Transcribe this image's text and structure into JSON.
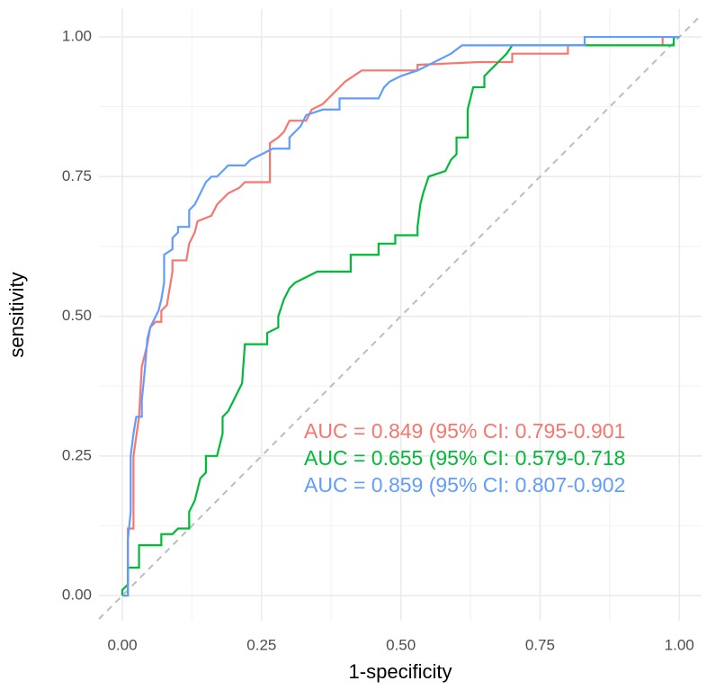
{
  "chart_data": {
    "type": "line",
    "x_label": "1-specificity",
    "y_label": "sensitivity",
    "xlim": [
      -0.042,
      1.04
    ],
    "ylim": [
      -0.045,
      1.05
    ],
    "xticks": [
      {
        "value": 0,
        "label": "0.00"
      },
      {
        "value": 0.25,
        "label": "0.25"
      },
      {
        "value": 0.5,
        "label": "0.50"
      },
      {
        "value": 0.75,
        "label": "0.75"
      },
      {
        "value": 1,
        "label": "1.00"
      }
    ],
    "yticks": [
      {
        "value": 0,
        "label": "0.00"
      },
      {
        "value": 0.25,
        "label": "0.25"
      },
      {
        "value": 0.5,
        "label": "0.50"
      },
      {
        "value": 0.75,
        "label": "0.75"
      },
      {
        "value": 1,
        "label": "1.00"
      }
    ],
    "grid": true,
    "reference_line_color": "#bdbdbd",
    "annotations": [
      {
        "text": "AUC = 0.849 (95% CI: 0.795-0.901",
        "color": "#F8766D"
      },
      {
        "text": "AUC = 0.655 (95% CI: 0.579-0.718",
        "color": "#00BA38"
      },
      {
        "text": "AUC = 0.859 (95% CI: 0.807-0.902",
        "color": "#619CFF"
      }
    ],
    "series": [
      {
        "color": "#F8766D",
        "x": [
          0,
          0.01,
          0.01,
          0.02,
          0.02,
          0.02,
          0.03,
          0.035,
          0.04,
          0.045,
          0.05,
          0.06,
          0.07,
          0.07,
          0.08,
          0.085,
          0.09,
          0.09,
          0.115,
          0.12,
          0.13,
          0.135,
          0.16,
          0.17,
          0.18,
          0.19,
          0.21,
          0.22,
          0.265,
          0.265,
          0.28,
          0.29,
          0.3,
          0.33,
          0.34,
          0.36,
          0.37,
          0.38,
          0.4,
          0.43,
          0.53,
          0.53,
          0.64,
          0.7,
          0.7,
          0.8,
          0.8,
          0.97,
          0.97,
          1
        ],
        "values": [
          0,
          0,
          0.12,
          0.12,
          0.17,
          0.25,
          0.32,
          0.41,
          0.43,
          0.45,
          0.48,
          0.49,
          0.49,
          0.51,
          0.52,
          0.55,
          0.58,
          0.6,
          0.6,
          0.63,
          0.65,
          0.67,
          0.68,
          0.7,
          0.71,
          0.72,
          0.73,
          0.74,
          0.74,
          0.81,
          0.82,
          0.83,
          0.85,
          0.85,
          0.87,
          0.88,
          0.89,
          0.9,
          0.92,
          0.94,
          0.94,
          0.95,
          0.955,
          0.955,
          0.97,
          0.97,
          0.985,
          0.985,
          1,
          1
        ]
      },
      {
        "color": "#00BA38",
        "x": [
          0,
          0,
          0.01,
          0.01,
          0.03,
          0.03,
          0.07,
          0.07,
          0.09,
          0.1,
          0.12,
          0.12,
          0.13,
          0.14,
          0.15,
          0.15,
          0.17,
          0.18,
          0.18,
          0.19,
          0.2,
          0.21,
          0.215,
          0.22,
          0.26,
          0.26,
          0.28,
          0.28,
          0.29,
          0.3,
          0.31,
          0.33,
          0.35,
          0.41,
          0.41,
          0.46,
          0.46,
          0.49,
          0.49,
          0.53,
          0.53,
          0.535,
          0.54,
          0.55,
          0.58,
          0.59,
          0.6,
          0.6,
          0.62,
          0.62,
          0.625,
          0.63,
          0.65,
          0.65,
          0.67,
          0.68,
          0.69,
          0.7,
          0.99,
          0.99,
          1
        ],
        "values": [
          0,
          0.01,
          0.02,
          0.05,
          0.05,
          0.09,
          0.09,
          0.11,
          0.11,
          0.12,
          0.12,
          0.15,
          0.17,
          0.21,
          0.22,
          0.25,
          0.25,
          0.29,
          0.32,
          0.33,
          0.35,
          0.37,
          0.38,
          0.45,
          0.45,
          0.47,
          0.48,
          0.5,
          0.53,
          0.55,
          0.56,
          0.57,
          0.58,
          0.58,
          0.61,
          0.61,
          0.63,
          0.63,
          0.645,
          0.645,
          0.66,
          0.7,
          0.72,
          0.75,
          0.76,
          0.78,
          0.79,
          0.82,
          0.82,
          0.87,
          0.89,
          0.91,
          0.91,
          0.93,
          0.95,
          0.96,
          0.97,
          0.985,
          0.985,
          1,
          1
        ]
      },
      {
        "color": "#619CFF",
        "x": [
          0,
          0.01,
          0.01,
          0.015,
          0.015,
          0.02,
          0.025,
          0.035,
          0.035,
          0.04,
          0.045,
          0.05,
          0.06,
          0.065,
          0.07,
          0.075,
          0.075,
          0.09,
          0.09,
          0.1,
          0.1,
          0.12,
          0.12,
          0.13,
          0.14,
          0.15,
          0.16,
          0.17,
          0.18,
          0.19,
          0.22,
          0.23,
          0.25,
          0.27,
          0.3,
          0.3,
          0.31,
          0.32,
          0.33,
          0.36,
          0.39,
          0.39,
          0.46,
          0.47,
          0.48,
          0.5,
          0.53,
          0.59,
          0.61,
          0.83,
          0.83,
          1
        ],
        "values": [
          0,
          0,
          0.1,
          0.15,
          0.25,
          0.29,
          0.32,
          0.32,
          0.35,
          0.4,
          0.46,
          0.48,
          0.5,
          0.51,
          0.53,
          0.56,
          0.61,
          0.62,
          0.64,
          0.65,
          0.66,
          0.66,
          0.69,
          0.7,
          0.72,
          0.74,
          0.75,
          0.75,
          0.76,
          0.77,
          0.77,
          0.78,
          0.79,
          0.8,
          0.8,
          0.82,
          0.83,
          0.84,
          0.86,
          0.87,
          0.87,
          0.89,
          0.89,
          0.91,
          0.92,
          0.93,
          0.94,
          0.97,
          0.985,
          0.985,
          1,
          1
        ]
      }
    ]
  }
}
